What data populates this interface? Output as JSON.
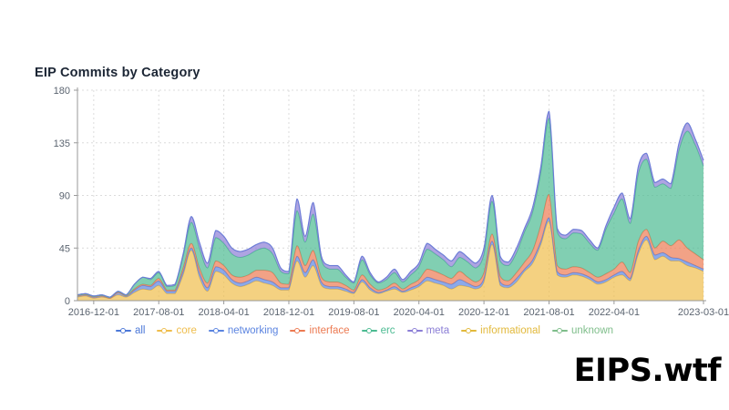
{
  "title": "EIP Commits by Category",
  "watermark": "EIPS.wtf",
  "colors": {
    "grid": "#dcdcdc",
    "axis": "#999999",
    "label": "#5b6470",
    "title": "#1b2534"
  },
  "chart_data": {
    "type": "area",
    "stacked": true,
    "smooth": true,
    "grid": "dotted",
    "legend_position": "bottom",
    "ylim": [
      0,
      180
    ],
    "y_ticks": [
      0,
      45,
      90,
      135,
      180
    ],
    "x": [
      "2016-10-01",
      "2016-11-01",
      "2016-12-01",
      "2017-01-01",
      "2017-02-01",
      "2017-03-01",
      "2017-04-01",
      "2017-05-01",
      "2017-06-01",
      "2017-07-01",
      "2017-08-01",
      "2017-09-01",
      "2017-10-01",
      "2017-11-01",
      "2017-12-01",
      "2018-01-01",
      "2018-02-01",
      "2018-03-01",
      "2018-04-01",
      "2018-05-01",
      "2018-06-01",
      "2018-07-01",
      "2018-08-01",
      "2018-09-01",
      "2018-10-01",
      "2018-11-01",
      "2018-12-01",
      "2019-01-01",
      "2019-02-01",
      "2019-03-01",
      "2019-04-01",
      "2019-05-01",
      "2019-06-01",
      "2019-07-01",
      "2019-08-01",
      "2019-09-01",
      "2019-10-01",
      "2019-11-01",
      "2019-12-01",
      "2020-01-01",
      "2020-02-01",
      "2020-03-01",
      "2020-04-01",
      "2020-05-01",
      "2020-06-01",
      "2020-07-01",
      "2020-08-01",
      "2020-09-01",
      "2020-10-01",
      "2020-11-01",
      "2020-12-01",
      "2021-01-01",
      "2021-02-01",
      "2021-03-01",
      "2021-04-01",
      "2021-05-01",
      "2021-06-01",
      "2021-07-01",
      "2021-08-01",
      "2021-09-01",
      "2021-10-01",
      "2021-11-01",
      "2021-12-01",
      "2022-01-01",
      "2022-02-01",
      "2022-03-01",
      "2022-04-01",
      "2022-05-01",
      "2022-06-01",
      "2022-07-01",
      "2022-08-01",
      "2022-09-01",
      "2022-10-01",
      "2022-11-01",
      "2022-12-01",
      "2023-01-01",
      "2023-02-01",
      "2023-03-01"
    ],
    "x_tick_indices": [
      2,
      10,
      18,
      26,
      34,
      42,
      50,
      58,
      66,
      77
    ],
    "series": [
      {
        "name": "all",
        "color": "#4c78d8",
        "derived": "sum_of_categories",
        "values": []
      },
      {
        "name": "core",
        "color": "#efbd4c",
        "values": [
          3,
          4,
          2,
          3,
          2,
          5,
          3,
          7,
          10,
          9,
          13,
          6,
          6,
          22,
          43,
          20,
          8,
          25,
          22,
          15,
          12,
          14,
          17,
          15,
          13,
          9,
          9,
          34,
          20,
          30,
          13,
          10,
          10,
          8,
          6,
          16,
          9,
          6,
          8,
          10,
          7,
          9,
          12,
          17,
          15,
          13,
          10,
          13,
          12,
          10,
          16,
          48,
          13,
          11,
          16,
          25,
          32,
          48,
          68,
          22,
          20,
          22,
          21,
          18,
          14,
          16,
          20,
          22,
          17,
          40,
          52,
          35,
          38,
          34,
          34,
          30,
          28,
          25
        ]
      },
      {
        "name": "networking",
        "color": "#5b84e0",
        "values": [
          1,
          1,
          1,
          1,
          0,
          2,
          1,
          2,
          3,
          3,
          4,
          2,
          2,
          3,
          2,
          4,
          3,
          4,
          4,
          3,
          3,
          3,
          3,
          3,
          3,
          2,
          2,
          4,
          4,
          5,
          3,
          2,
          2,
          2,
          1,
          2,
          2,
          1,
          1,
          2,
          1,
          2,
          2,
          3,
          3,
          3,
          4,
          5,
          3,
          2,
          3,
          3,
          3,
          2,
          3,
          2,
          3,
          3,
          3,
          3,
          2,
          2,
          2,
          2,
          2,
          2,
          2,
          3,
          2,
          3,
          3,
          4,
          3,
          3,
          2,
          3,
          2,
          2
        ]
      },
      {
        "name": "interface",
        "color": "#ec7a52",
        "values": [
          0,
          0,
          0,
          0,
          0,
          0,
          0,
          1,
          1,
          1,
          2,
          1,
          1,
          3,
          4,
          4,
          4,
          5,
          4,
          4,
          5,
          5,
          6,
          8,
          8,
          4,
          3,
          9,
          6,
          8,
          4,
          4,
          4,
          3,
          2,
          4,
          3,
          2,
          2,
          3,
          2,
          3,
          4,
          7,
          7,
          6,
          5,
          7,
          5,
          4,
          5,
          6,
          5,
          4,
          5,
          6,
          8,
          14,
          20,
          5,
          5,
          5,
          5,
          4,
          4,
          5,
          5,
          8,
          5,
          8,
          6,
          6,
          10,
          10,
          16,
          12,
          10,
          8
        ]
      },
      {
        "name": "erc",
        "color": "#4cbb92",
        "values": [
          1,
          1,
          1,
          1,
          1,
          1,
          1,
          4,
          6,
          5,
          5,
          3,
          4,
          10,
          18,
          17,
          13,
          20,
          19,
          18,
          17,
          17,
          17,
          19,
          16,
          10,
          9,
          30,
          20,
          31,
          15,
          11,
          11,
          7,
          6,
          13,
          8,
          6,
          7,
          9,
          6,
          8,
          11,
          17,
          15,
          13,
          10,
          12,
          13,
          12,
          16,
          28,
          13,
          13,
          17,
          26,
          33,
          45,
          65,
          29,
          26,
          29,
          29,
          25,
          23,
          38,
          48,
          54,
          42,
          58,
          60,
          52,
          49,
          49,
          77,
          100,
          93,
          80
        ]
      },
      {
        "name": "meta",
        "color": "#8b7ed6",
        "values": [
          0,
          0,
          0,
          0,
          0,
          0,
          0,
          0,
          0,
          1,
          1,
          1,
          1,
          2,
          5,
          5,
          4,
          6,
          6,
          5,
          5,
          5,
          5,
          5,
          5,
          3,
          2,
          10,
          5,
          10,
          3,
          3,
          3,
          2,
          1,
          3,
          2,
          1,
          2,
          3,
          2,
          3,
          3,
          5,
          4,
          4,
          5,
          5,
          4,
          4,
          5,
          5,
          4,
          3,
          4,
          3,
          4,
          5,
          6,
          3,
          3,
          3,
          3,
          3,
          2,
          3,
          5,
          5,
          4,
          6,
          5,
          4,
          4,
          4,
          6,
          7,
          5,
          5
        ]
      },
      {
        "name": "informational",
        "color": "#e2b93b",
        "values": []
      },
      {
        "name": "unknown",
        "color": "#7fbe8b",
        "values": []
      }
    ]
  }
}
